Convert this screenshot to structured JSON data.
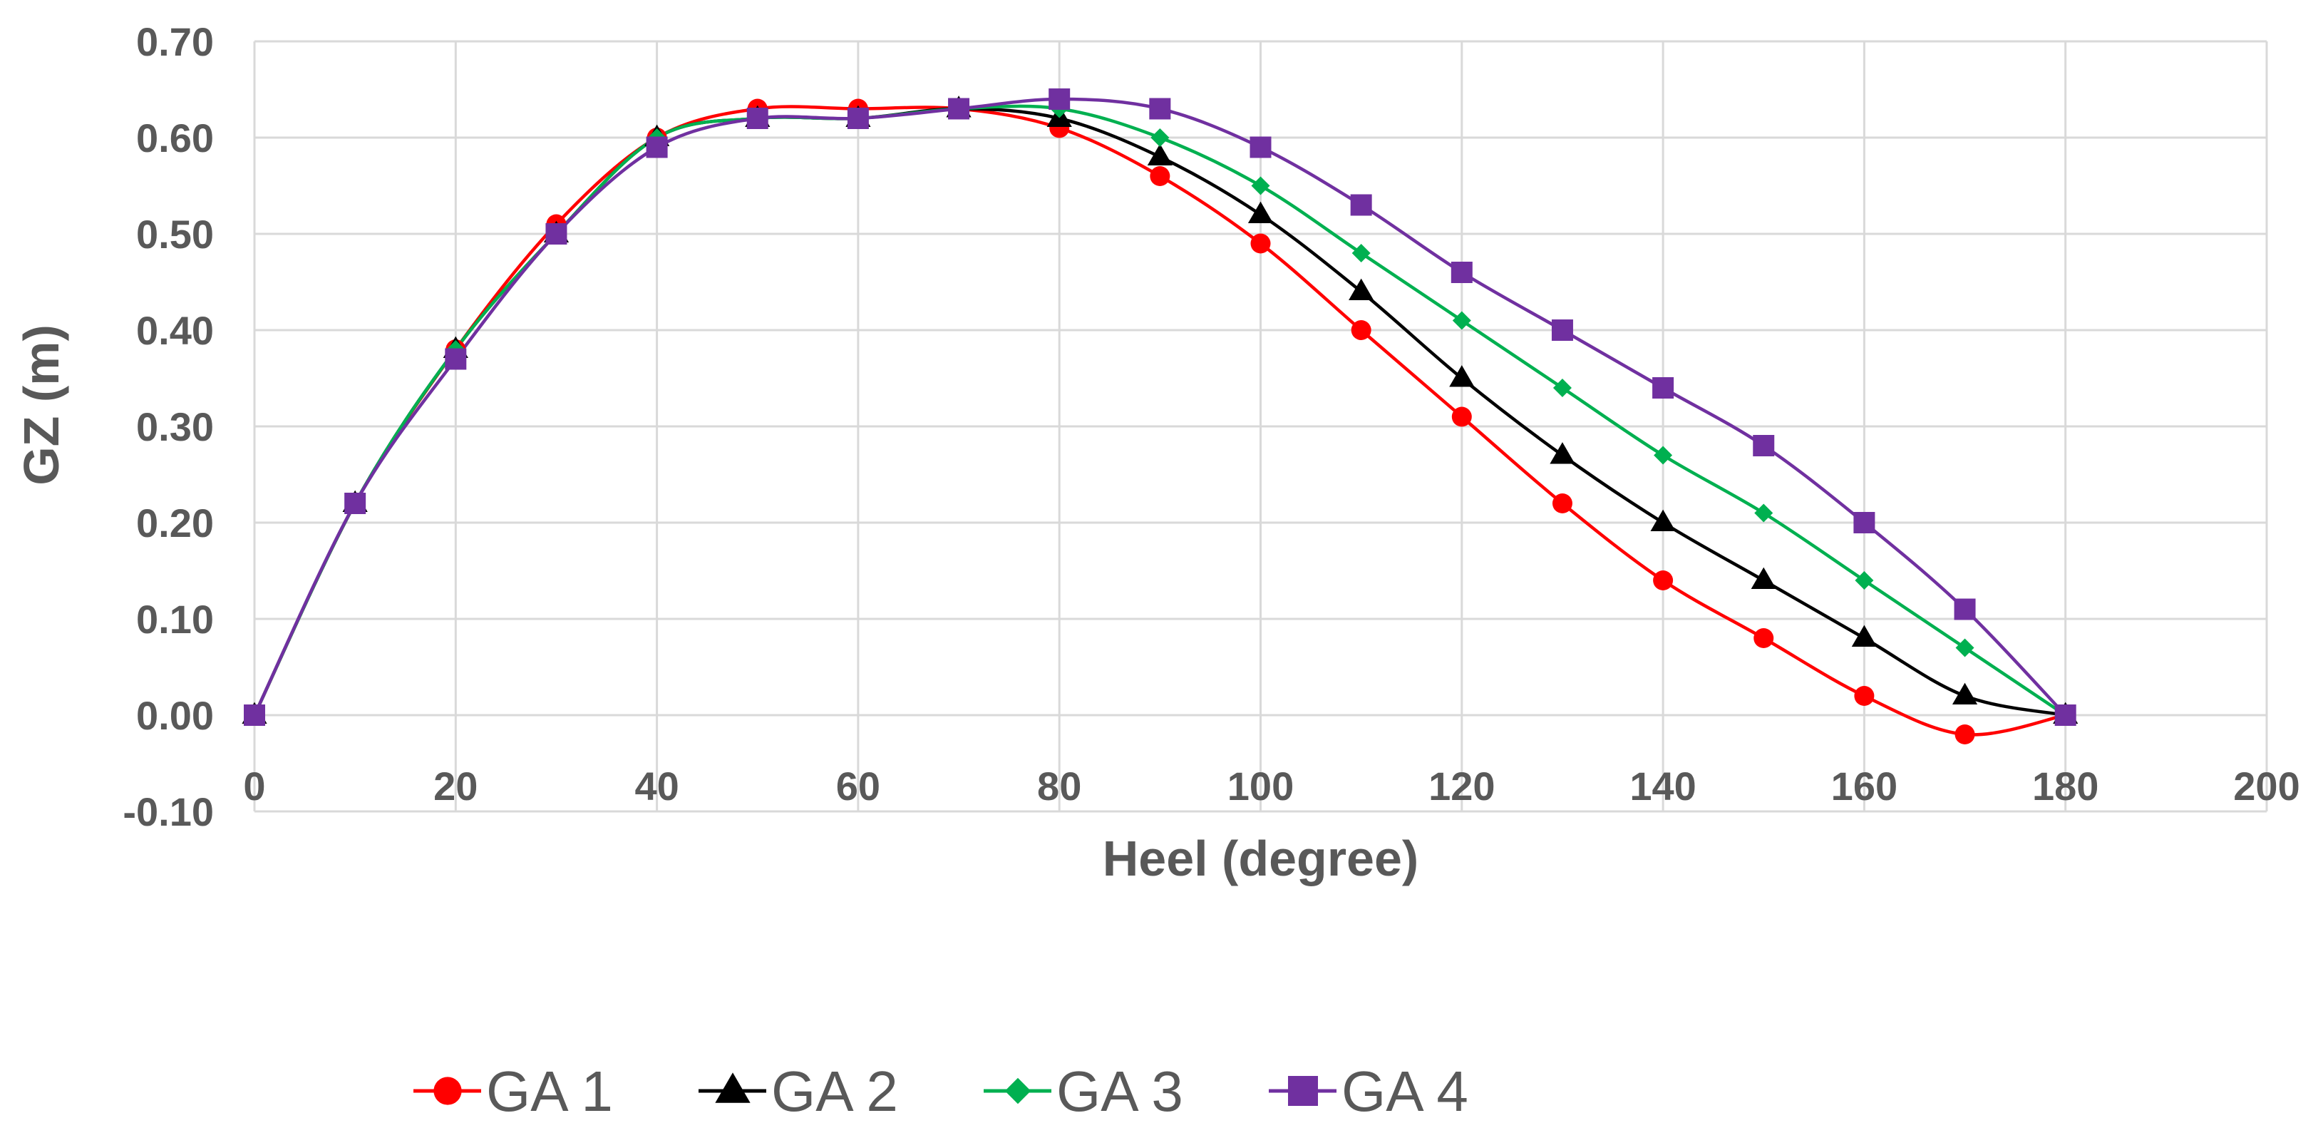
{
  "chart_data": {
    "type": "line",
    "smooth": true,
    "title": "",
    "xlabel": "Heel (degree)",
    "ylabel": "GZ (m)",
    "xlim": [
      0,
      200
    ],
    "ylim": [
      -0.1,
      0.7
    ],
    "x_ticks": [
      0,
      20,
      40,
      60,
      80,
      100,
      120,
      140,
      160,
      180,
      200
    ],
    "y_ticks": [
      -0.1,
      0.0,
      0.1,
      0.2,
      0.3,
      0.4,
      0.5,
      0.6,
      0.7
    ],
    "x_tick_labels": [
      "0",
      "20",
      "40",
      "60",
      "80",
      "100",
      "120",
      "140",
      "160",
      "180",
      "200"
    ],
    "y_tick_labels": [
      "-0.10",
      "0.00",
      "0.10",
      "0.20",
      "0.30",
      "0.40",
      "0.50",
      "0.60",
      "0.70"
    ],
    "grid": true,
    "legend_position": "bottom",
    "x": [
      0,
      10,
      20,
      30,
      40,
      50,
      60,
      70,
      80,
      90,
      100,
      110,
      120,
      130,
      140,
      150,
      160,
      170,
      180
    ],
    "series": [
      {
        "name": "GA 1",
        "color": "#ff0000",
        "marker": "circle",
        "values": [
          0.0,
          0.22,
          0.38,
          0.51,
          0.6,
          0.63,
          0.63,
          0.63,
          0.61,
          0.56,
          0.49,
          0.4,
          0.31,
          0.22,
          0.14,
          0.08,
          0.02,
          -0.02,
          0.0
        ]
      },
      {
        "name": "GA 2",
        "color": "#000000",
        "marker": "triangle",
        "values": [
          0.0,
          0.22,
          0.38,
          0.5,
          0.6,
          0.62,
          0.62,
          0.63,
          0.62,
          0.58,
          0.52,
          0.44,
          0.35,
          0.27,
          0.2,
          0.14,
          0.08,
          0.02,
          0.0
        ]
      },
      {
        "name": "GA 3",
        "color": "#00b050",
        "marker": "diamond",
        "values": [
          0.0,
          0.22,
          0.38,
          0.5,
          0.6,
          0.62,
          0.62,
          0.63,
          0.63,
          0.6,
          0.55,
          0.48,
          0.41,
          0.34,
          0.27,
          0.21,
          0.14,
          0.07,
          0.0
        ]
      },
      {
        "name": "GA 4",
        "color": "#7030a0",
        "marker": "square",
        "values": [
          0.0,
          0.22,
          0.37,
          0.5,
          0.59,
          0.62,
          0.62,
          0.63,
          0.64,
          0.63,
          0.59,
          0.53,
          0.46,
          0.4,
          0.34,
          0.28,
          0.2,
          0.11,
          0.0
        ]
      }
    ]
  }
}
